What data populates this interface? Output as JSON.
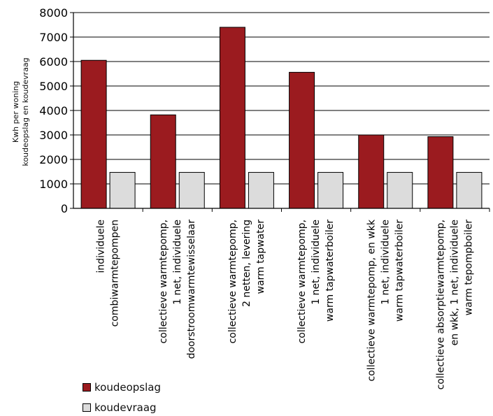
{
  "chart_data": {
    "type": "bar",
    "title": "",
    "ylabel_line1": "Kwh per woning",
    "ylabel_line2": "koudeopslag en koudevraag",
    "ylim": [
      0,
      8000
    ],
    "yticks": [
      0,
      1000,
      2000,
      3000,
      4000,
      5000,
      6000,
      7000,
      8000
    ],
    "grid": true,
    "legend_position": "bottom-left",
    "categories": [
      [
        "individuele",
        "combiwarmtepompen"
      ],
      [
        "collectieve warmtepomp,",
        "1 net, individuele",
        "doorstroomwarmtewisselaar"
      ],
      [
        "collectieve warmtepomp,",
        "2 netten, levering",
        "warm tapwater"
      ],
      [
        "collectieve warmtepomp,",
        "1 net, individuele",
        "warm tapwaterboiler"
      ],
      [
        "collectieve warmtepomp, en wkk",
        "1 net, individuele",
        "warm tapwaterboiler"
      ],
      [
        "collectieve absorptiewarmtepomp,",
        "en wkk, 1 net, individuele",
        "warm tepompboiler"
      ]
    ],
    "series": [
      {
        "name": "koudeopslag",
        "color": "#9b1b1f",
        "values": [
          6050,
          3820,
          7400,
          5560,
          3000,
          2930
        ]
      },
      {
        "name": "koudevraag",
        "color": "#dcdcdc",
        "values": [
          1470,
          1470,
          1470,
          1470,
          1470,
          1470
        ]
      }
    ]
  }
}
